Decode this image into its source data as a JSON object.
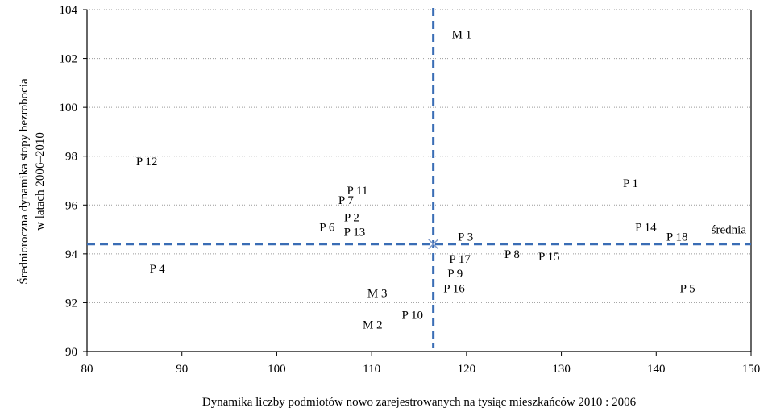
{
  "chart_data": {
    "type": "scatter",
    "title": "",
    "xlabel": "Dynamika liczby podmiotów nowo zarejestrowanych na tysiąc mieszkańców 2010 : 2006",
    "ylabel_line1": "Średnioroczna dynamika stopy bezrobocia",
    "ylabel_line2": "w latach 2006–2010",
    "xlim": [
      80,
      150
    ],
    "ylim": [
      90,
      104
    ],
    "xticks": [
      "80",
      "90",
      "100",
      "110",
      "120",
      "130",
      "140",
      "150"
    ],
    "yticks": [
      "90",
      "92",
      "94",
      "96",
      "98",
      "100",
      "102",
      "104"
    ],
    "grid": "horizontal",
    "mean": {
      "x": 116.5,
      "y": 94.4,
      "label": "średnia"
    },
    "points": [
      {
        "label": "M 1",
        "x": 119.5,
        "y": 103.0
      },
      {
        "label": "P 12",
        "x": 86.3,
        "y": 97.8
      },
      {
        "label": "P 1",
        "x": 137.3,
        "y": 96.9
      },
      {
        "label": "P 11",
        "x": 108.5,
        "y": 96.6
      },
      {
        "label": "P 7",
        "x": 107.3,
        "y": 96.2
      },
      {
        "label": "P 2",
        "x": 107.9,
        "y": 95.5
      },
      {
        "label": "P 6",
        "x": 105.3,
        "y": 95.1
      },
      {
        "label": "P 13",
        "x": 108.2,
        "y": 94.9
      },
      {
        "label": "P 14",
        "x": 138.9,
        "y": 95.1
      },
      {
        "label": "P 18",
        "x": 142.2,
        "y": 94.7
      },
      {
        "label": "P 3",
        "x": 119.9,
        "y": 94.7
      },
      {
        "label": "P 8",
        "x": 124.8,
        "y": 94.0
      },
      {
        "label": "P 15",
        "x": 128.7,
        "y": 93.9
      },
      {
        "label": "P 17",
        "x": 119.3,
        "y": 93.8
      },
      {
        "label": "P 4",
        "x": 87.4,
        "y": 93.4
      },
      {
        "label": "P 9",
        "x": 118.8,
        "y": 93.2
      },
      {
        "label": "P 16",
        "x": 118.7,
        "y": 92.6
      },
      {
        "label": "P 5",
        "x": 143.3,
        "y": 92.6
      },
      {
        "label": "M 3",
        "x": 110.6,
        "y": 92.4
      },
      {
        "label": "P 10",
        "x": 114.3,
        "y": 91.5
      },
      {
        "label": "M 2",
        "x": 110.1,
        "y": 91.1
      }
    ]
  }
}
